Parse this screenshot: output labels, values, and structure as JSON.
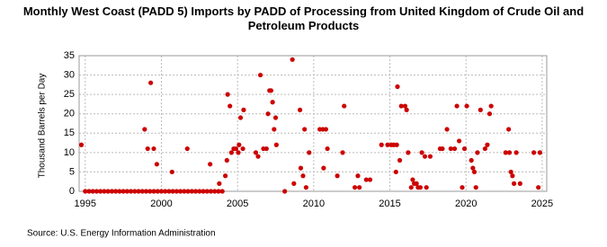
{
  "chart_data": {
    "type": "scatter",
    "title": "Monthly West Coast (PADD 5) Imports by PADD of Processing from United Kingdom of Crude Oil and Petroleum Products",
    "y_label": "Thousand Barrels per Day",
    "source": "Source: U.S. Energy Information Administration",
    "color": "#cc0000",
    "grid": true,
    "xlim": [
      1994.6,
      2025.3
    ],
    "xticks": [
      1995,
      2000,
      2005,
      2010,
      2015,
      2020,
      2025
    ],
    "ylim": [
      0,
      35
    ],
    "yticks": [
      0,
      5,
      10,
      15,
      20,
      25,
      30,
      35
    ],
    "x": [
      1994.75,
      1995.0,
      1995.25,
      1995.5,
      1995.75,
      1996.0,
      1996.25,
      1996.5,
      1996.75,
      1997.0,
      1997.25,
      1997.5,
      1997.75,
      1998.0,
      1998.25,
      1998.5,
      1998.75,
      1999.0,
      1999.25,
      1999.5,
      1999.75,
      2000.0,
      2000.25,
      2000.5,
      2000.75,
      2001.0,
      2001.25,
      2001.5,
      2001.75,
      2002.0,
      2002.25,
      2002.5,
      2002.75,
      2003.0,
      2003.25,
      2003.5,
      2003.75,
      2004.0,
      1998.9,
      1999.1,
      1999.3,
      1999.5,
      1999.7,
      2000.7,
      2001.7,
      2003.2,
      2003.8,
      2004.2,
      2004.3,
      2004.35,
      2004.5,
      2004.6,
      2004.75,
      2004.9,
      2005.05,
      2005.1,
      2005.2,
      2005.35,
      2005.4,
      2006.2,
      2006.35,
      2006.5,
      2006.7,
      2006.9,
      2007.0,
      2007.1,
      2007.2,
      2007.3,
      2007.4,
      2007.5,
      2007.55,
      2008.1,
      2008.6,
      2008.7,
      2009.1,
      2009.15,
      2009.3,
      2009.4,
      2009.5,
      2009.7,
      2010.4,
      2010.6,
      2010.65,
      2010.8,
      2010.9,
      2011.55,
      2011.9,
      2012.0,
      2012.7,
      2012.9,
      2013.0,
      2013.45,
      2013.7,
      2014.45,
      2014.85,
      2015.1,
      2015.25,
      2015.4,
      2015.45,
      2015.5,
      2015.65,
      2015.75,
      2016.0,
      2016.1,
      2016.2,
      2016.4,
      2016.5,
      2016.6,
      2016.75,
      2016.85,
      2017.0,
      2017.1,
      2017.3,
      2017.4,
      2017.65,
      2018.3,
      2018.45,
      2018.75,
      2019.0,
      2019.25,
      2019.4,
      2019.55,
      2019.75,
      2019.9,
      2020.05,
      2020.35,
      2020.45,
      2020.55,
      2020.65,
      2020.75,
      2020.95,
      2021.25,
      2021.4,
      2021.55,
      2021.65,
      2022.6,
      2022.8,
      2022.85,
      2022.95,
      2023.05,
      2023.15,
      2023.3,
      2023.55,
      2024.45,
      2024.75,
      2024.85
    ],
    "values": [
      12,
      0,
      0,
      0,
      0,
      0,
      0,
      0,
      0,
      0,
      0,
      0,
      0,
      0,
      0,
      0,
      0,
      0,
      0,
      0,
      0,
      0,
      0,
      0,
      0,
      0,
      0,
      0,
      0,
      0,
      0,
      0,
      0,
      0,
      0,
      0,
      0,
      0,
      16,
      11,
      28,
      11,
      7,
      5,
      11,
      7,
      2,
      4,
      8,
      25,
      22,
      10,
      11,
      11,
      10,
      12,
      19,
      11,
      21,
      10,
      9,
      30,
      11,
      11,
      20,
      26,
      26,
      23,
      16,
      19,
      12,
      0,
      34,
      2,
      21,
      6,
      4,
      16,
      1,
      10,
      16,
      16,
      6,
      16,
      11,
      4,
      10,
      22,
      1,
      4,
      1,
      3,
      3,
      12,
      12,
      12,
      12,
      5,
      12,
      27,
      8,
      22,
      22,
      21,
      10,
      1,
      3,
      2,
      2,
      1,
      1,
      10,
      9,
      1,
      9,
      11,
      11,
      16,
      11,
      11,
      22,
      13,
      1,
      11,
      22,
      8,
      6,
      5,
      1,
      10,
      21,
      11,
      12,
      20,
      22,
      10,
      16,
      10,
      5,
      4,
      2,
      10,
      2,
      10,
      1,
      10
    ]
  }
}
